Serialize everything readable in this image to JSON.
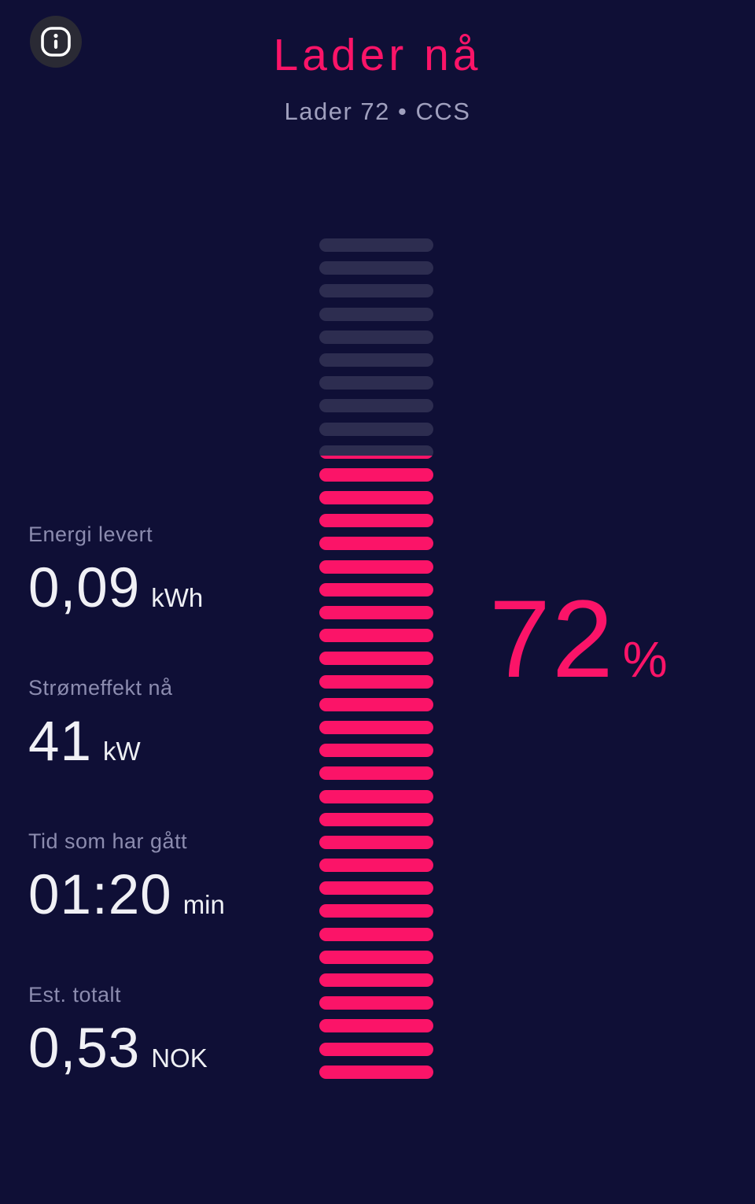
{
  "header": {
    "title": "Lader nå",
    "subtitle": "Lader 72 • CCS"
  },
  "meter": {
    "percent_value": "72",
    "percent_symbol": "%",
    "segments_total": 37,
    "segments_filled": 27,
    "partial_segment_index": 9,
    "filled_color": "#fb1468",
    "empty_color": "#2d2d50"
  },
  "stats": [
    {
      "label": "Energi levert",
      "value": "0,09",
      "unit": "kWh"
    },
    {
      "label": "Strømeffekt nå",
      "value": "41",
      "unit": "kW"
    },
    {
      "label": "Tid som har gått",
      "value": "01:20",
      "unit": "min"
    },
    {
      "label": "Est. totalt",
      "value": "0,53",
      "unit": "NOK"
    }
  ],
  "colors": {
    "background": "#0f0f36",
    "accent_pink": "#fb1468",
    "empty_segment": "#2d2d50",
    "subtitle_text": "#a0a0be",
    "label_text": "#8c8caf",
    "value_text": "#f0f0f5",
    "info_button_bg": "#2a2a34"
  }
}
